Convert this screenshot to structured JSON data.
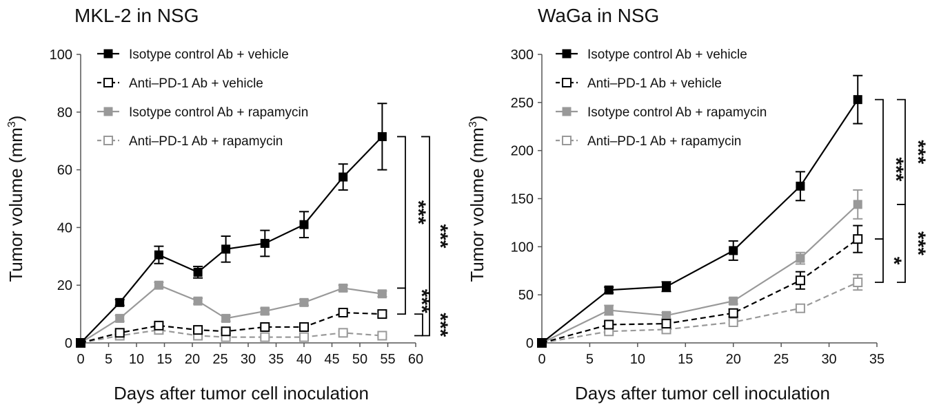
{
  "chart_data": [
    {
      "type": "line",
      "title": "MKL-2 in NSG",
      "xlabel": "Days after tumor cell inoculation",
      "ylabel": "Tumor volume (mm",
      "ylabel_sup": "3",
      "ylabel_close": ")",
      "xlim": [
        0,
        60
      ],
      "ylim": [
        0,
        100
      ],
      "xticks": [
        0,
        5,
        10,
        15,
        20,
        25,
        30,
        35,
        40,
        45,
        50,
        55,
        60
      ],
      "yticks": [
        0,
        20,
        40,
        60,
        80,
        100
      ],
      "grid": false,
      "legend_position": "top-left",
      "x": [
        0,
        7,
        14,
        21,
        26,
        33,
        40,
        47,
        54
      ],
      "series": [
        {
          "name": "Isotype control Ab + vehicle",
          "color": "#000000",
          "marker": "filled-square",
          "dash": "solid",
          "values": [
            0,
            14,
            30.5,
            24.5,
            32.5,
            34.5,
            41,
            57.5,
            71.5
          ],
          "errors": [
            0,
            1,
            3,
            2,
            4.5,
            4.5,
            4.5,
            4.5,
            11.5
          ]
        },
        {
          "name": "Anti–PD-1 Ab + vehicle",
          "color": "#000000",
          "marker": "open-square",
          "dash": "dashed",
          "values": [
            0,
            3.5,
            6.0,
            4.5,
            4.0,
            5.5,
            5.5,
            10.5,
            10.0
          ],
          "errors": [
            0,
            0.6,
            0.8,
            0.6,
            0.6,
            0.8,
            0.8,
            1,
            1
          ]
        },
        {
          "name": "Isotype control Ab + rapamycin",
          "color": "#999999",
          "marker": "filled-square",
          "dash": "solid",
          "values": [
            0,
            8.5,
            20.0,
            14.5,
            8.5,
            11.0,
            14.0,
            19.0,
            17.0
          ],
          "errors": [
            0,
            1,
            1,
            1,
            1,
            1,
            1,
            1,
            1
          ]
        },
        {
          "name": "Anti–PD-1 Ab + rapamycin",
          "color": "#999999",
          "marker": "open-square",
          "dash": "dashed",
          "values": [
            0,
            2.5,
            4.5,
            2.5,
            2.0,
            2.0,
            2.0,
            3.5,
            2.5
          ],
          "errors": [
            0,
            0.5,
            0.5,
            0.5,
            0.5,
            0.5,
            0.5,
            0.5,
            0.5
          ]
        }
      ],
      "significance": [
        {
          "label": "***",
          "from": 71.5,
          "to": 19.0
        },
        {
          "label": "***",
          "from": 71.5,
          "to": 2.5
        },
        {
          "label": "***",
          "from": 19.0,
          "to": 10.0
        },
        {
          "label": "***",
          "from": 10.0,
          "to": 2.5
        }
      ]
    },
    {
      "type": "line",
      "title": "WaGa in NSG",
      "xlabel": "Days after tumor cell inoculation",
      "ylabel": "Tumor volume (mm",
      "ylabel_sup": "3",
      "ylabel_close": ")",
      "xlim": [
        0,
        35
      ],
      "ylim": [
        0,
        300
      ],
      "xticks": [
        0,
        5,
        10,
        15,
        20,
        25,
        30,
        35
      ],
      "yticks": [
        0,
        50,
        100,
        150,
        200,
        250,
        300
      ],
      "grid": false,
      "legend_position": "top-left",
      "x": [
        0,
        7,
        13,
        20,
        27,
        33
      ],
      "series": [
        {
          "name": "Isotype control Ab + vehicle",
          "color": "#000000",
          "marker": "filled-square",
          "dash": "solid",
          "values": [
            0,
            55,
            58.5,
            96,
            163,
            253
          ],
          "errors": [
            0,
            3,
            5,
            10,
            15,
            25
          ]
        },
        {
          "name": "Anti–PD-1 Ab + vehicle",
          "color": "#000000",
          "marker": "open-square",
          "dash": "dashed",
          "values": [
            0,
            19,
            20,
            31,
            65,
            108
          ],
          "errors": [
            0,
            3,
            3,
            4,
            9,
            14
          ]
        },
        {
          "name": "Isotype control Ab + rapamycin",
          "color": "#999999",
          "marker": "filled-square",
          "dash": "solid",
          "values": [
            0,
            34,
            28.5,
            43.5,
            88,
            144
          ],
          "errors": [
            0,
            5,
            3,
            3,
            6,
            15
          ]
        },
        {
          "name": "Anti–PD-1 Ab + rapamycin",
          "color": "#999999",
          "marker": "open-square",
          "dash": "dashed",
          "values": [
            0,
            12,
            14,
            21.5,
            36,
            63
          ],
          "errors": [
            0,
            2,
            2,
            2,
            4,
            8
          ]
        }
      ],
      "significance": [
        {
          "label": "***",
          "from": 253,
          "to": 108
        },
        {
          "label": "***",
          "from": 253,
          "to": 144
        },
        {
          "label": "*",
          "from": 108,
          "to": 63
        },
        {
          "label": "***",
          "from": 144,
          "to": 63
        }
      ]
    }
  ]
}
